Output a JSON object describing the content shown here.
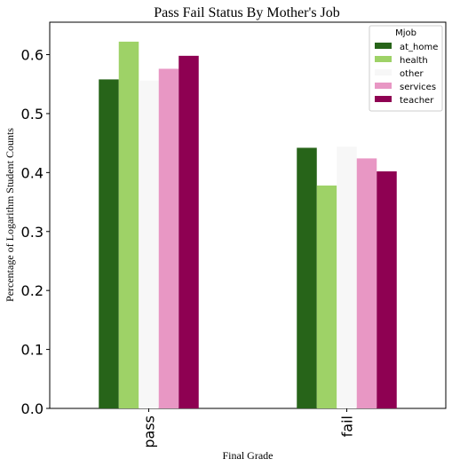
{
  "chart_data": {
    "type": "bar",
    "title": "Pass Fail Status By Mother's Job",
    "xlabel": "Final Grade",
    "ylabel": "Percentage of Logarithm Student Counts",
    "categories": [
      "pass",
      "fail"
    ],
    "ylim": [
      0,
      0.655
    ],
    "yticks": [
      "0.0",
      "0.1",
      "0.2",
      "0.3",
      "0.4",
      "0.5",
      "0.6"
    ],
    "grid": false,
    "legend": {
      "title": "Mjob",
      "placement": "top-right"
    },
    "series": [
      {
        "name": "at_home",
        "color": "#276419",
        "values": [
          0.558,
          0.442
        ]
      },
      {
        "name": "health",
        "color": "#9ed267",
        "values": [
          0.622,
          0.378
        ]
      },
      {
        "name": "other",
        "color": "#f7f7f7",
        "values": [
          0.556,
          0.444
        ]
      },
      {
        "name": "services",
        "color": "#e897c4",
        "values": [
          0.576,
          0.424
        ]
      },
      {
        "name": "teacher",
        "color": "#8e0152",
        "values": [
          0.598,
          0.402
        ]
      }
    ]
  }
}
